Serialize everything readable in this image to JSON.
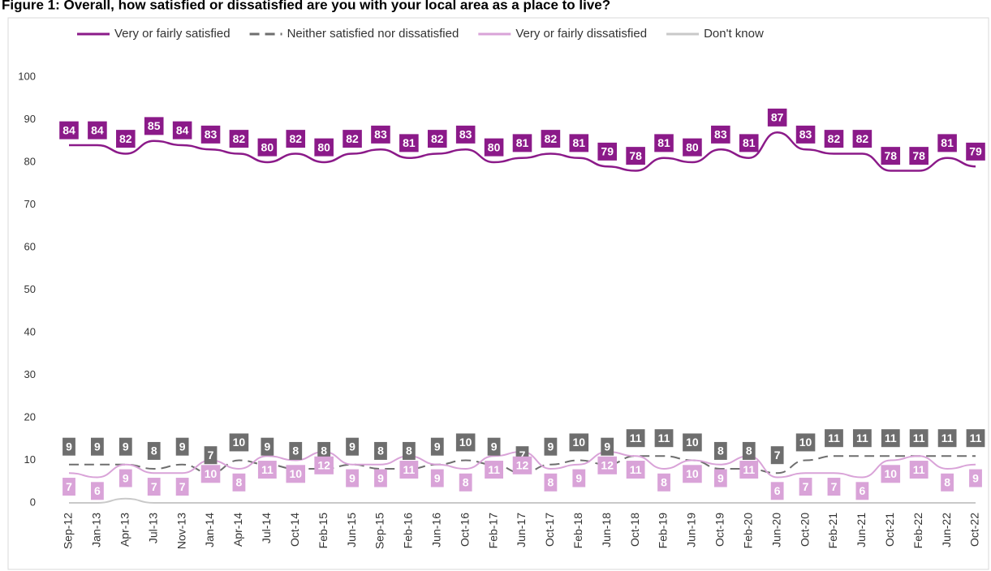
{
  "chart_data": {
    "type": "line",
    "title": "Figure 1: Overall, how satisfied or dissatisfied are you with your local area as a place to live?",
    "categories": [
      "Sep-12",
      "Jan-13",
      "Apr-13",
      "Jul-13",
      "Nov-13",
      "Jan-14",
      "Apr-14",
      "Jul-14",
      "Oct-14",
      "Feb-15",
      "Jun-15",
      "Sep-15",
      "Feb-16",
      "Jun-16",
      "Oct-16",
      "Feb-17",
      "Jun-17",
      "Oct-17",
      "Feb-18",
      "Jun-18",
      "Oct-18",
      "Feb-19",
      "Jun-19",
      "Oct-19",
      "Feb-20",
      "Jun-20",
      "Oct-20",
      "Feb-21",
      "Jun-21",
      "Oct-21",
      "Feb-22",
      "Jun-22",
      "Oct-22"
    ],
    "series": [
      {
        "name": "Very or fairly satisfied",
        "color": "#8b1a89",
        "dash": false,
        "labeled": true,
        "values": [
          84,
          84,
          82,
          85,
          84,
          83,
          82,
          80,
          82,
          80,
          82,
          83,
          81,
          82,
          83,
          80,
          81,
          82,
          81,
          79,
          78,
          81,
          80,
          83,
          81,
          87,
          83,
          82,
          82,
          78,
          78,
          81,
          79
        ]
      },
      {
        "name": "Neither satisfied nor dissatisfied",
        "color": "#6e6e6e",
        "dash": true,
        "labeled": true,
        "values": [
          9,
          9,
          9,
          8,
          9,
          7,
          10,
          9,
          8,
          8,
          9,
          8,
          8,
          9,
          10,
          9,
          7,
          9,
          10,
          9,
          11,
          11,
          10,
          8,
          8,
          7,
          10,
          11,
          11,
          11,
          11,
          11,
          11
        ]
      },
      {
        "name": "Very or fairly dissatisfied",
        "color": "#d9a3d8",
        "dash": false,
        "labeled": true,
        "values": [
          7,
          6,
          9,
          7,
          7,
          10,
          8,
          11,
          10,
          12,
          9,
          9,
          11,
          9,
          8,
          11,
          12,
          8,
          9,
          12,
          11,
          8,
          10,
          9,
          11,
          6,
          7,
          7,
          6,
          10,
          11,
          8,
          9
        ]
      },
      {
        "name": "Don't know",
        "color": "#c9c9c9",
        "dash": false,
        "labeled": false,
        "values": [
          0,
          0,
          1,
          0,
          0,
          0,
          0,
          0,
          0,
          0,
          0,
          0,
          0,
          0,
          0,
          0,
          0,
          0,
          0,
          0,
          0,
          0,
          0,
          0,
          0,
          0,
          0,
          0,
          0,
          0,
          0,
          0,
          0
        ]
      }
    ],
    "ylim": [
      0,
      100
    ],
    "yticks": [
      0,
      10,
      20,
      30,
      40,
      50,
      60,
      70,
      80,
      90,
      100
    ],
    "grid": false
  }
}
